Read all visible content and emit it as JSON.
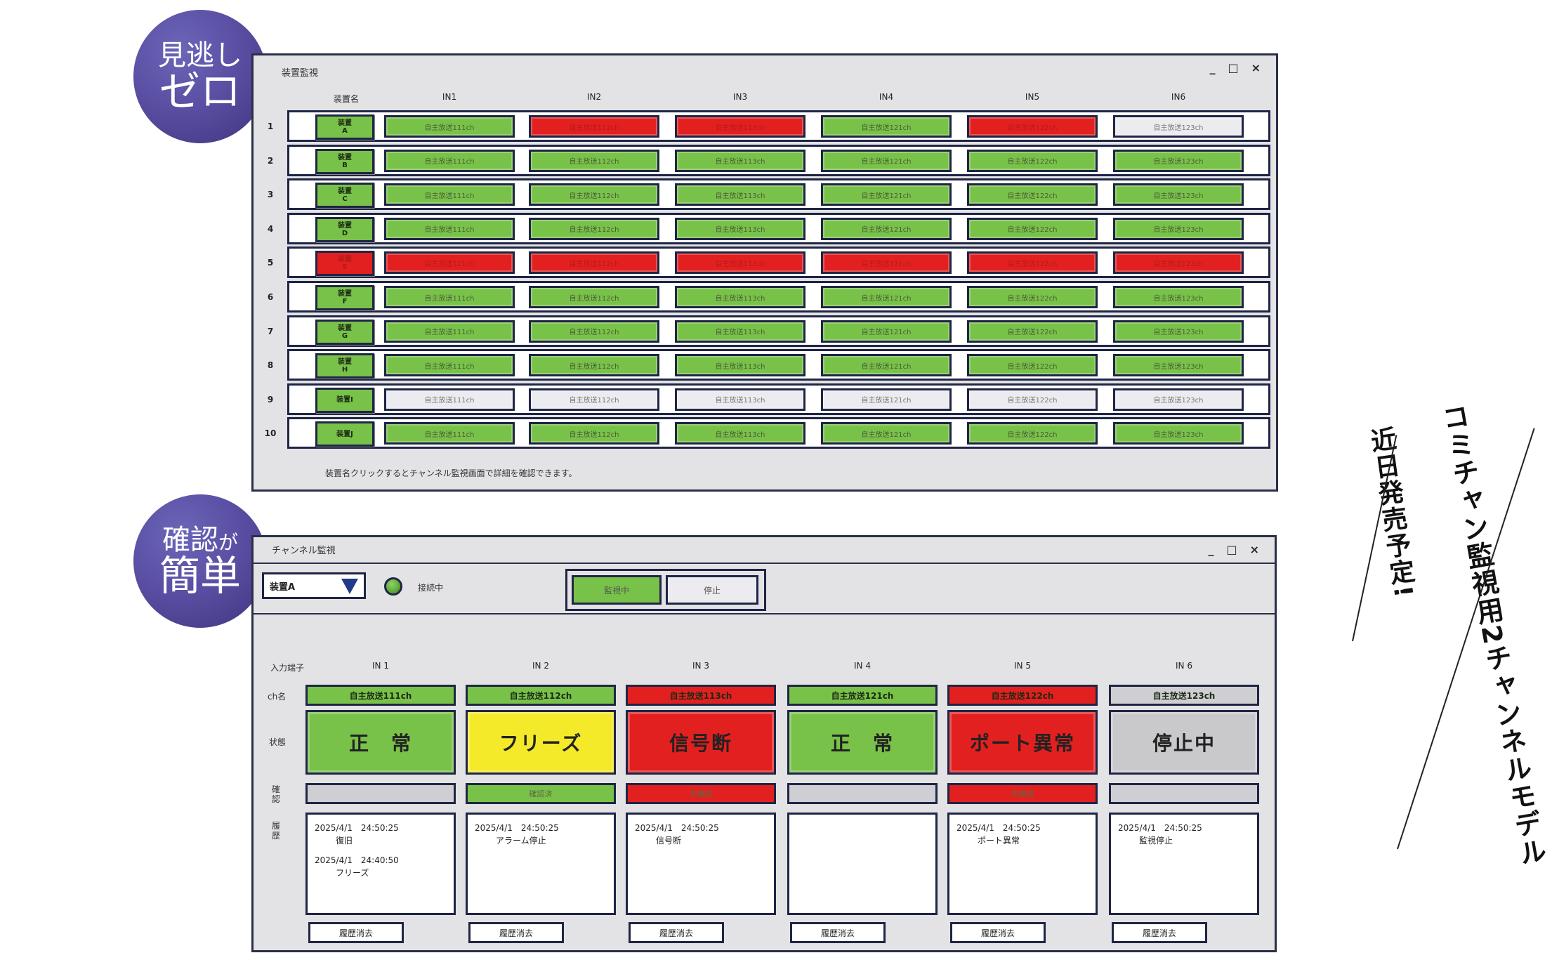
{
  "badges": {
    "top": {
      "line1": "見逃し",
      "line2": "ゼロ"
    },
    "bottom": {
      "line1a": "確認",
      "line1b": "が",
      "line2": "簡単"
    }
  },
  "promo": {
    "line1": "コミチャン監視用2チャンネルモデル",
    "line2": "近日発売予定!"
  },
  "device_window": {
    "title": "装置監視",
    "controls": [
      "_",
      "□",
      "×"
    ],
    "col_device": "装置名",
    "cols": [
      "IN1",
      "IN2",
      "IN3",
      "IN4",
      "IN5",
      "IN6"
    ],
    "rows": [
      {
        "num": "1",
        "dev_l1": "装置",
        "dev_l2": "A",
        "dev_state": "g",
        "states": [
          "g",
          "r",
          "r",
          "g",
          "r",
          "w"
        ],
        "labels": [
          "自主放送111ch",
          "自主放送112ch",
          "自主放送113ch",
          "自主放送121ch",
          "自主放送122ch",
          "自主放送123ch"
        ]
      },
      {
        "num": "2",
        "dev_l1": "装置",
        "dev_l2": "B",
        "dev_state": "g",
        "states": [
          "g",
          "g",
          "g",
          "g",
          "g",
          "g"
        ],
        "labels": [
          "自主放送111ch",
          "自主放送112ch",
          "自主放送113ch",
          "自主放送121ch",
          "自主放送122ch",
          "自主放送123ch"
        ]
      },
      {
        "num": "3",
        "dev_l1": "装置",
        "dev_l2": "C",
        "dev_state": "g",
        "states": [
          "g",
          "g",
          "g",
          "g",
          "g",
          "g"
        ],
        "labels": [
          "自主放送111ch",
          "自主放送112ch",
          "自主放送113ch",
          "自主放送121ch",
          "自主放送122ch",
          "自主放送123ch"
        ]
      },
      {
        "num": "4",
        "dev_l1": "装置",
        "dev_l2": "D",
        "dev_state": "g",
        "states": [
          "g",
          "g",
          "g",
          "g",
          "g",
          "g"
        ],
        "labels": [
          "自主放送111ch",
          "自主放送112ch",
          "自主放送113ch",
          "自主放送121ch",
          "自主放送122ch",
          "自主放送123ch"
        ]
      },
      {
        "num": "5",
        "dev_l1": "装置",
        "dev_l2": "E",
        "dev_state": "r",
        "states": [
          "r",
          "r",
          "r",
          "r",
          "r",
          "r"
        ],
        "labels": [
          "自主放送111ch",
          "自主放送112ch",
          "自主放送113ch",
          "自主放送121ch",
          "自主放送122ch",
          "自主放送123ch"
        ]
      },
      {
        "num": "6",
        "dev_l1": "装置",
        "dev_l2": "F",
        "dev_state": "g",
        "states": [
          "g",
          "g",
          "g",
          "g",
          "g",
          "g"
        ],
        "labels": [
          "自主放送111ch",
          "自主放送112ch",
          "自主放送113ch",
          "自主放送121ch",
          "自主放送122ch",
          "自主放送123ch"
        ]
      },
      {
        "num": "7",
        "dev_l1": "装置",
        "dev_l2": "G",
        "dev_state": "g",
        "states": [
          "g",
          "g",
          "g",
          "g",
          "g",
          "g"
        ],
        "labels": [
          "自主放送111ch",
          "自主放送112ch",
          "自主放送113ch",
          "自主放送121ch",
          "自主放送122ch",
          "自主放送123ch"
        ]
      },
      {
        "num": "8",
        "dev_l1": "装置",
        "dev_l2": "H",
        "dev_state": "g",
        "states": [
          "g",
          "g",
          "g",
          "g",
          "g",
          "g"
        ],
        "labels": [
          "自主放送111ch",
          "自主放送112ch",
          "自主放送113ch",
          "自主放送121ch",
          "自主放送122ch",
          "自主放送123ch"
        ]
      },
      {
        "num": "9",
        "dev_l1": "装置I",
        "dev_l2": "",
        "dev_state": "g",
        "states": [
          "w",
          "w",
          "w",
          "w",
          "w",
          "w"
        ],
        "labels": [
          "自主放送111ch",
          "自主放送112ch",
          "自主放送113ch",
          "自主放送121ch",
          "自主放送122ch",
          "自主放送123ch"
        ]
      },
      {
        "num": "10",
        "dev_l1": "装置J",
        "dev_l2": "",
        "dev_state": "g",
        "states": [
          "g",
          "g",
          "g",
          "g",
          "g",
          "g"
        ],
        "labels": [
          "自主放送111ch",
          "自主放送112ch",
          "自主放送113ch",
          "自主放送121ch",
          "自主放送122ch",
          "自主放送123ch"
        ]
      }
    ],
    "note": "装置名クリックするとチャンネル監視画面で詳細を確認できます。"
  },
  "channel_window": {
    "title": "チャンネル監視",
    "controls": [
      "_",
      "□",
      "×"
    ],
    "device_select": "装置A",
    "connection_label": "接続中",
    "btn_monitor": "監視中",
    "btn_stop": "停止",
    "row_labels": {
      "input": "入力端子",
      "chname": "ch名",
      "state": "状態",
      "confirm": "確認",
      "history": "履歴"
    },
    "channels": [
      {
        "col": "IN 1",
        "chname": "自主放送111ch",
        "status": "正　常",
        "status_color": "g",
        "confirm": "",
        "confirm_color": "ltg",
        "history": [
          {
            "ts": "2025/4/1　24:50:25",
            "ev": "復旧"
          },
          {
            "ts": "2025/4/1　24:40:50",
            "ev": "フリーズ"
          }
        ],
        "clear": "履歴消去"
      },
      {
        "col": "IN 2",
        "chname": "自主放送112ch",
        "status": "フリーズ",
        "status_color": "yellow",
        "confirm": "確認済",
        "confirm_color": "g",
        "history": [
          {
            "ts": "2025/4/1　24:50:25",
            "ev": "アラーム停止"
          }
        ],
        "clear": "履歴消去"
      },
      {
        "col": "IN 3",
        "chname": "自主放送113ch",
        "status": "信号断",
        "status_color": "r",
        "confirm": "未確認",
        "confirm_color": "r",
        "history": [
          {
            "ts": "2025/4/1　24:50:25",
            "ev": "信号断"
          }
        ],
        "clear": "履歴消去"
      },
      {
        "col": "IN 4",
        "chname": "自主放送121ch",
        "status": "正　常",
        "status_color": "g",
        "confirm": "",
        "confirm_color": "ltg",
        "history": [],
        "clear": "履歴消去"
      },
      {
        "col": "IN 5",
        "chname": "自主放送122ch",
        "status": "ポート異常",
        "status_color": "r",
        "confirm": "未確認",
        "confirm_color": "r",
        "history": [
          {
            "ts": "2025/4/1　24:50:25",
            "ev": "ポート異常"
          }
        ],
        "clear": "履歴消去"
      },
      {
        "col": "IN 6",
        "chname": "自主放送123ch",
        "status": "停止中",
        "status_color": "gray",
        "confirm": "",
        "confirm_color": "ltg",
        "history": [
          {
            "ts": "2025/4/1　24:50:25",
            "ev": "監視停止"
          }
        ],
        "clear": "履歴消去"
      }
    ]
  }
}
